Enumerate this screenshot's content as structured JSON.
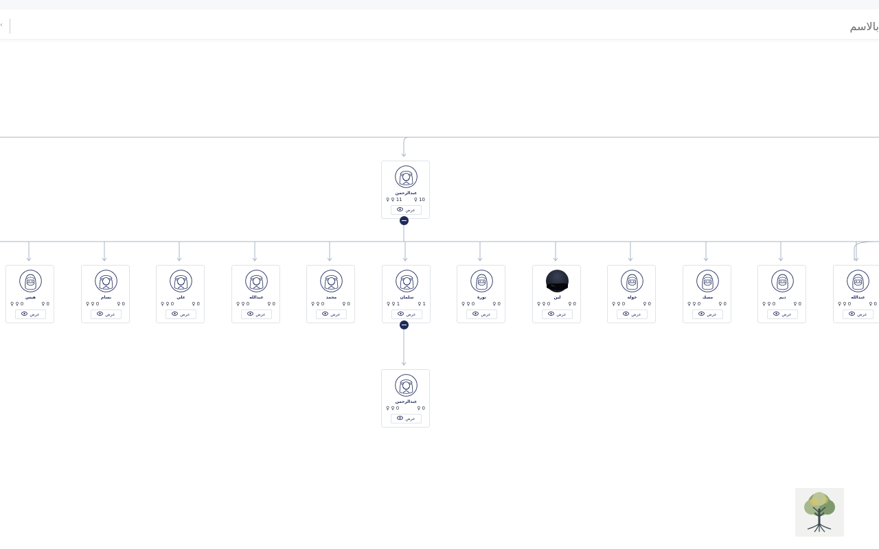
{
  "search": {
    "placeholder": "بالاسم"
  },
  "tree": {
    "root": {
      "name": "عبدالرحمن",
      "stat_left": "♀ ♀ 11",
      "stat_right": "♀ 10",
      "view_label": "عرض",
      "avatar": "man-avatar-icon"
    },
    "children": [
      {
        "name": "هيس",
        "stat_left": "♀ ♀ 0",
        "stat_right": "♀ 0",
        "view_label": "عرض",
        "avatar": "woman-avatar-icon"
      },
      {
        "name": "بسام",
        "stat_left": "♀ ♀ 0",
        "stat_right": "♀ 0",
        "view_label": "عرض",
        "avatar": "man-avatar-icon"
      },
      {
        "name": "علي",
        "stat_left": "♀ ♀ 0",
        "stat_right": "♀ 0",
        "view_label": "عرض",
        "avatar": "man-avatar-icon"
      },
      {
        "name": "عبدالله",
        "stat_left": "♀ ♀ 0",
        "stat_right": "♀ 0",
        "view_label": "عرض",
        "avatar": "man-avatar-icon"
      },
      {
        "name": "محمد",
        "stat_left": "♀ ♀ 0",
        "stat_right": "♀ 0",
        "view_label": "عرض",
        "avatar": "man-avatar-icon"
      },
      {
        "name": "سلمان",
        "stat_left": "♀ ♀ 1",
        "stat_right": "♀ 1",
        "view_label": "عرض",
        "avatar": "man-avatar-icon"
      },
      {
        "name": "نورة",
        "stat_left": "♀ ♀ 0",
        "stat_right": "♀ 0",
        "view_label": "عرض",
        "avatar": "woman-avatar-icon"
      },
      {
        "name": "لين",
        "stat_left": "♀ ♀ 0",
        "stat_right": "♀ 0",
        "view_label": "عرض",
        "avatar": "photo-avatar"
      },
      {
        "name": "خولة",
        "stat_left": "♀ ♀ 0",
        "stat_right": "♀ 0",
        "view_label": "عرض",
        "avatar": "woman-avatar-icon"
      },
      {
        "name": "مسك",
        "stat_left": "♀ ♀ 0",
        "stat_right": "♀ 0",
        "view_label": "عرض",
        "avatar": "woman-avatar-icon"
      },
      {
        "name": "ديم",
        "stat_left": "♀ ♀ 0",
        "stat_right": "♀ 0",
        "view_label": "عرض",
        "avatar": "woman-avatar-icon"
      },
      {
        "name": "عبدالله",
        "stat_left": "♀ ♀ 0",
        "stat_right": "♀ 0",
        "view_label": "عرض",
        "avatar": "woman-avatar-icon"
      }
    ],
    "grandchild": {
      "name": "عبدالرحمن",
      "stat_left": "♀ ♀ 0",
      "stat_right": "♀ 0",
      "view_label": "عرض",
      "avatar": "man-avatar-icon"
    }
  },
  "colors": {
    "navy": "#1e2a5a",
    "line": "#a9b4c4",
    "card_border": "#dfe3e8"
  },
  "logo": {
    "icon": "tree-logo"
  }
}
